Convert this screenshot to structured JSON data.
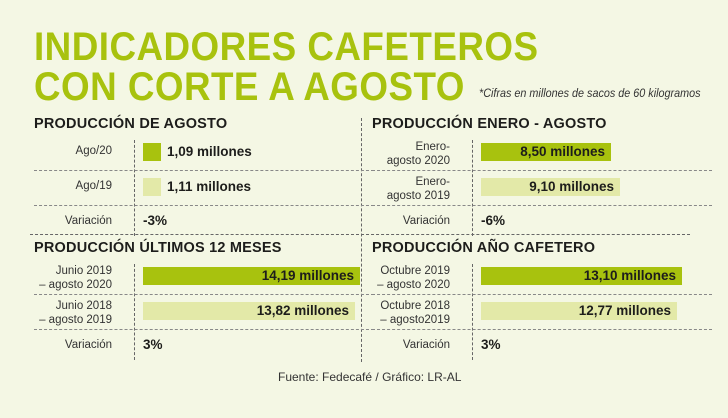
{
  "title_line1": "INDICADORES CAFETEROS",
  "title_line2": "CON CORTE A AGOSTO",
  "note": "*Cifras en millones de sacos de 60 kilogramos",
  "source": "Fuente: Fedecafé / Gráfico: LR-AL",
  "colors": {
    "current": "#a8c20e",
    "previous": "#e3e9a8",
    "title": "#a8c20e"
  },
  "chart_data": [
    {
      "type": "bar",
      "title": "PRODUCCIÓN DE AGOSTO",
      "categories": [
        "Ago/20",
        "Ago/19"
      ],
      "values": [
        1.09,
        1.11
      ],
      "value_labels": [
        "1,09 millones",
        "1,11 millones"
      ],
      "variation_label": "Variación",
      "variation": "-3%",
      "label_style": "legend"
    },
    {
      "type": "bar",
      "title": "PRODUCCIÓN ENERO - AGOSTO",
      "categories": [
        "Enero-\nagosto 2020",
        "Enero-\nagosto 2019"
      ],
      "values": [
        8.5,
        9.1
      ],
      "value_labels": [
        "8,50 millones",
        "9,10 millones"
      ],
      "variation_label": "Variación",
      "variation": "-6%"
    },
    {
      "type": "bar",
      "title": "PRODUCCIÓN ÚLTIMOS 12 MESES",
      "categories": [
        "Junio 2019\n– agosto 2020",
        "Junio 2018\n– agosto 2019"
      ],
      "values": [
        14.19,
        13.82
      ],
      "value_labels": [
        "14,19 millones",
        "13,82 millones"
      ],
      "variation_label": "Variación",
      "variation": "3%"
    },
    {
      "type": "bar",
      "title": "PRODUCCIÓN AÑO CAFETERO",
      "categories": [
        "Octubre 2019\n– agosto 2020",
        "Octubre 2018\n– agosto2019"
      ],
      "values": [
        13.1,
        12.77
      ],
      "value_labels": [
        "13,10 millones",
        "12,77 millones"
      ],
      "variation_label": "Variación",
      "variation": "3%"
    }
  ]
}
